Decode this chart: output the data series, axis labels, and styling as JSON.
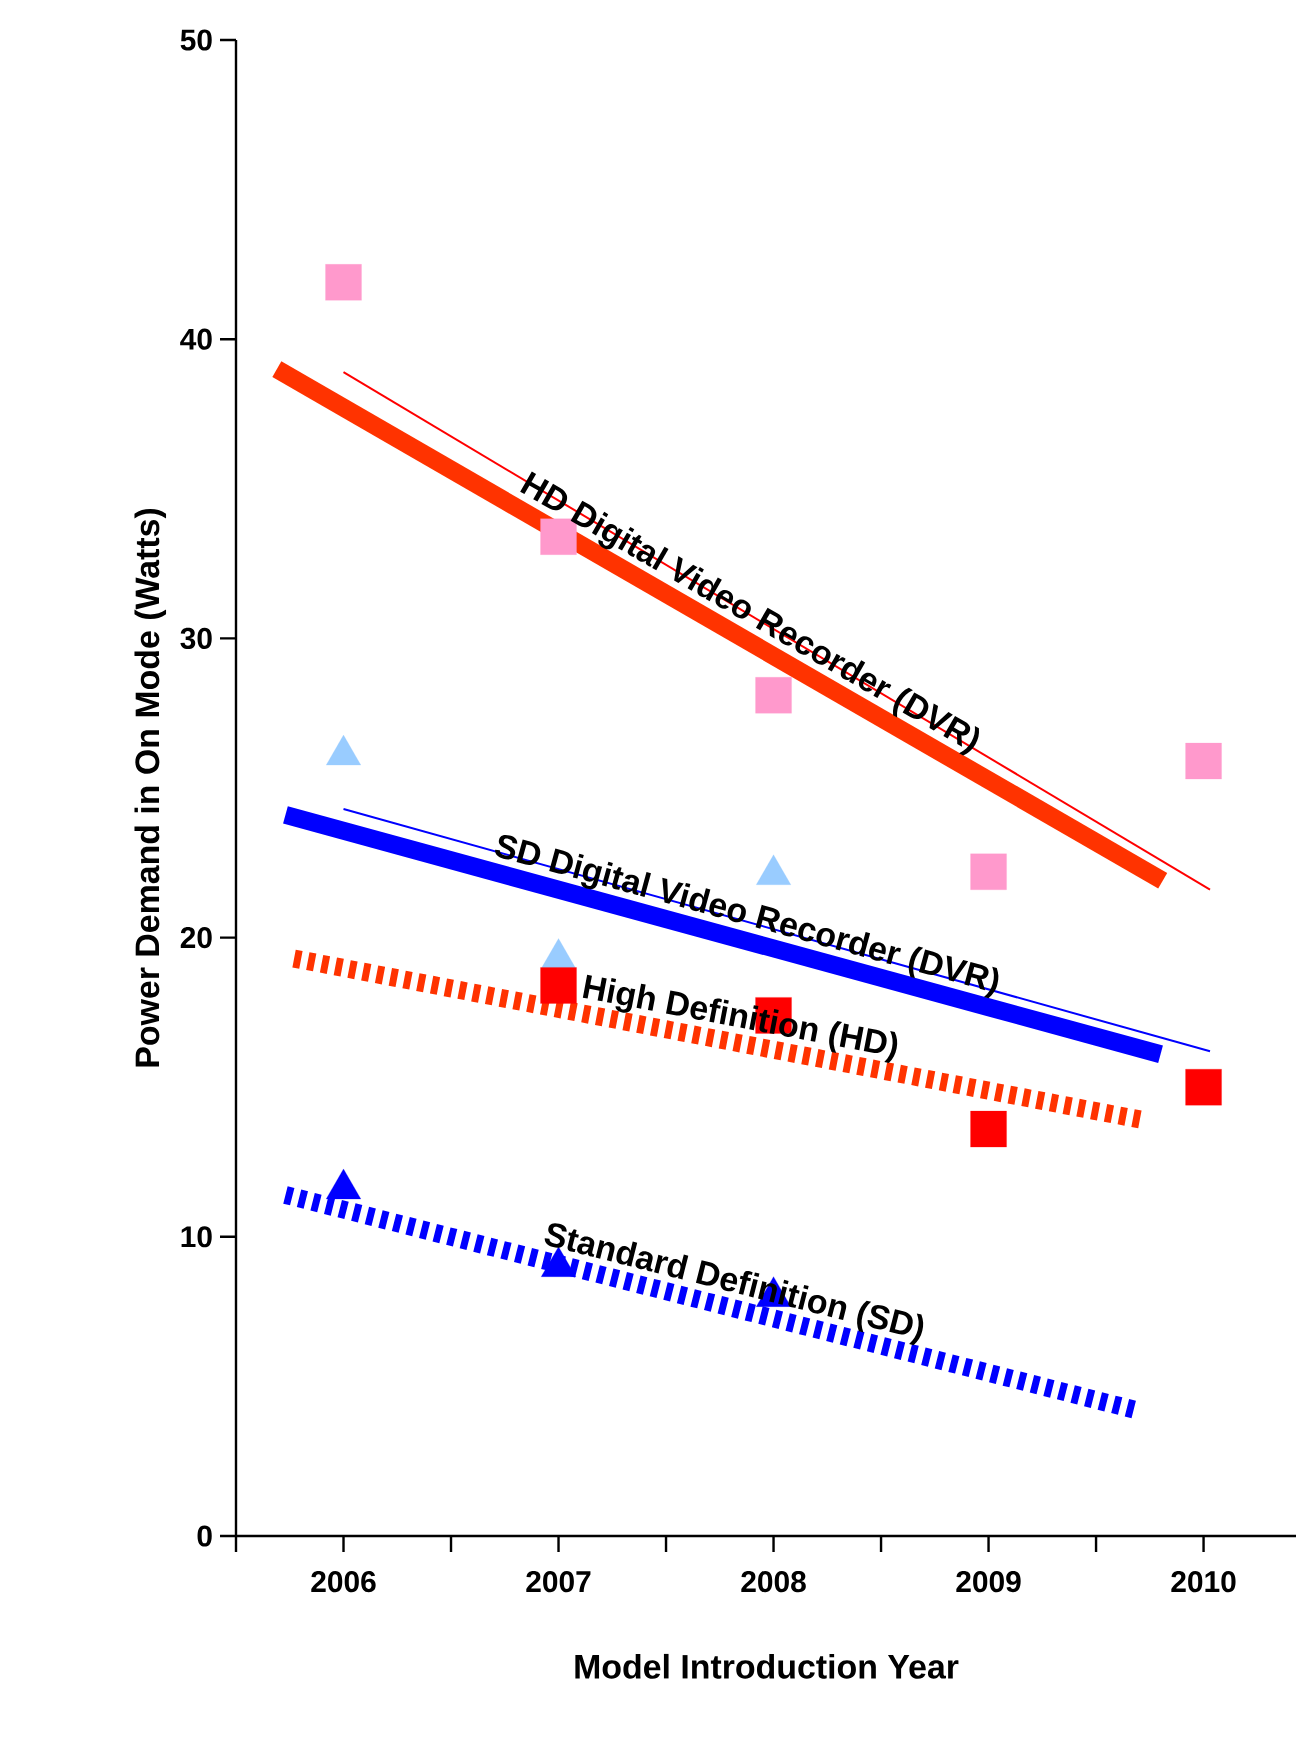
{
  "chart_data": {
    "type": "scatter",
    "xlabel": "Model Introduction Year",
    "ylabel": "Power Demand in On Mode (Watts)",
    "xlim": [
      2005.5,
      2010.43
    ],
    "ylim": [
      0,
      50
    ],
    "xticks": [
      {
        "value": 2005.5,
        "label": null
      },
      2006,
      {
        "value": 2006.5,
        "label": null
      },
      2007,
      {
        "value": 2007.5,
        "label": null
      },
      2008,
      {
        "value": 2008.5,
        "label": null
      },
      2009,
      {
        "value": 2009.5,
        "label": null
      },
      2010
    ],
    "yticks": [
      0,
      10,
      20,
      30,
      40,
      50
    ],
    "grid": false,
    "series": [
      {
        "marker": "square",
        "color": "#ff99cc",
        "x": [
          2006,
          2007,
          2008,
          2009,
          2010
        ],
        "values": [
          41.9,
          33.4,
          28.1,
          22.2,
          25.9
        ]
      },
      {
        "marker": "triangle",
        "color": "#99ccff",
        "x": [
          2006,
          2007,
          2008
        ],
        "values": [
          26.1,
          19.3,
          22.1
        ]
      },
      {
        "marker": "square",
        "color": "#ff0000",
        "x": [
          2007,
          2008,
          2009,
          2010
        ],
        "values": [
          18.4,
          17.4,
          13.6,
          15.0
        ]
      },
      {
        "marker": "triangle",
        "color": "#0000ff",
        "x": [
          2006,
          2007,
          2008
        ],
        "values": [
          11.6,
          9.0,
          8.0
        ]
      },
      {
        "type": "line",
        "marker": "none",
        "line_style": "solid",
        "color": "#ff0000",
        "x": [
          2006,
          2010.03
        ],
        "values": [
          38.9,
          21.6
        ]
      },
      {
        "type": "line",
        "marker": "none",
        "line_style": "solid",
        "color": "#0000ff",
        "x": [
          2006,
          2010.03
        ],
        "values": [
          24.3,
          16.2
        ]
      },
      {
        "type": "line",
        "marker": "none",
        "line_style": "solid",
        "color": "#ff3300",
        "name": "HD Digital Video Recorder (DVR)",
        "x": [
          2005.69,
          2009.81
        ],
        "values": [
          39.0,
          21.9
        ]
      },
      {
        "type": "line",
        "marker": "none",
        "line_style": "solid",
        "color": "#0000ff",
        "name": "SD Digital Video Recorder (DVR)",
        "x": [
          2005.73,
          2009.8
        ],
        "values": [
          24.1,
          16.1
        ]
      },
      {
        "type": "line",
        "marker": "none",
        "line_style": "dashed",
        "color": "#ff3300",
        "name": "High Definition (HD)",
        "x": [
          2005.77,
          2009.72
        ],
        "values": [
          19.3,
          13.9
        ]
      },
      {
        "type": "line",
        "marker": "none",
        "line_style": "dashed",
        "color": "#0000ff",
        "name": "Standard Definition (SD)",
        "x": [
          2005.73,
          2009.69
        ],
        "values": [
          11.4,
          4.2
        ]
      }
    ]
  }
}
